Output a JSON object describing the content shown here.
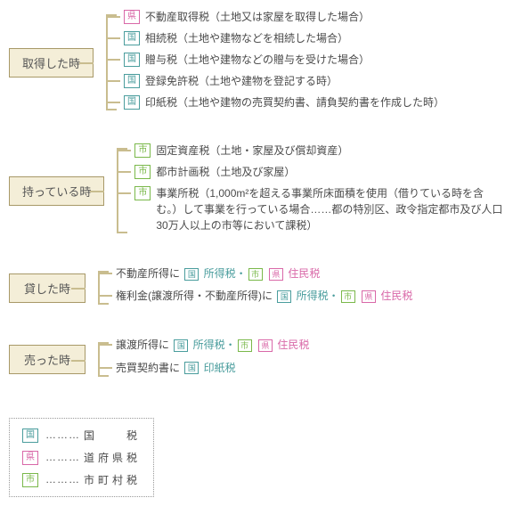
{
  "colors": {
    "box_bg": "#f4eed8",
    "box_border": "#a89968",
    "bracket": "#c9bd8f",
    "kuni": "#4a9d9d",
    "ken": "#d968a8",
    "shi": "#7ab84a",
    "text": "#4a4a4a"
  },
  "tags": {
    "kuni": "国",
    "ken": "県",
    "shi": "市"
  },
  "sections": [
    {
      "title": "取得した時",
      "items": [
        {
          "tag": "ken",
          "text": "不動産取得税（土地又は家屋を取得した場合）"
        },
        {
          "tag": "kuni",
          "text": "相続税（土地や建物などを相続した場合）"
        },
        {
          "tag": "kuni",
          "text": "贈与税（土地や建物などの贈与を受けた場合）"
        },
        {
          "tag": "kuni",
          "text": "登録免許税（土地や建物を登記する時）"
        },
        {
          "tag": "kuni",
          "text": "印紙税（土地や建物の売買契約書、請負契約書を作成した時）"
        }
      ]
    },
    {
      "title": "持っている時",
      "items": [
        {
          "tag": "shi",
          "text": "固定資産税（土地・家屋及び償却資産）"
        },
        {
          "tag": "shi",
          "text": "都市計画税（土地及び家屋）"
        },
        {
          "tag": "shi",
          "text": "事業所税（1,000m²を超える事業所床面積を使用（借りている時を含む。）して事業を行っている場合……都の特別区、政令指定都市及び人口30万人以上の市等において課税）"
        }
      ]
    },
    {
      "title": "貸した時",
      "mixed": true,
      "items": [
        {
          "parts": [
            {
              "t": "不動産所得に "
            },
            {
              "tag": "kuni"
            },
            {
              "t": " 所得税・",
              "c": "kuni"
            },
            {
              "tag": "shi"
            },
            {
              "t": " "
            },
            {
              "tag": "ken"
            },
            {
              "t": " 住民税",
              "c": "ken"
            }
          ]
        },
        {
          "parts": [
            {
              "t": "権利金(譲渡所得・不動産所得)に "
            },
            {
              "tag": "kuni"
            },
            {
              "t": " 所得税・",
              "c": "kuni"
            },
            {
              "tag": "shi"
            },
            {
              "t": " "
            },
            {
              "tag": "ken"
            },
            {
              "t": " 住民税",
              "c": "ken"
            }
          ]
        }
      ]
    },
    {
      "title": "売った時",
      "mixed": true,
      "items": [
        {
          "parts": [
            {
              "t": "譲渡所得に "
            },
            {
              "tag": "kuni"
            },
            {
              "t": " 所得税・",
              "c": "kuni"
            },
            {
              "tag": "shi"
            },
            {
              "t": " "
            },
            {
              "tag": "ken"
            },
            {
              "t": " 住民税",
              "c": "ken"
            }
          ]
        },
        {
          "parts": [
            {
              "t": "売買契約書に "
            },
            {
              "tag": "kuni"
            },
            {
              "t": " 印紙税",
              "c": "kuni"
            }
          ]
        }
      ]
    }
  ],
  "legend": [
    {
      "tag": "kuni",
      "label": "国　　税"
    },
    {
      "tag": "ken",
      "label": "道府県税"
    },
    {
      "tag": "shi",
      "label": "市町村税"
    }
  ],
  "legend_dots": "………"
}
